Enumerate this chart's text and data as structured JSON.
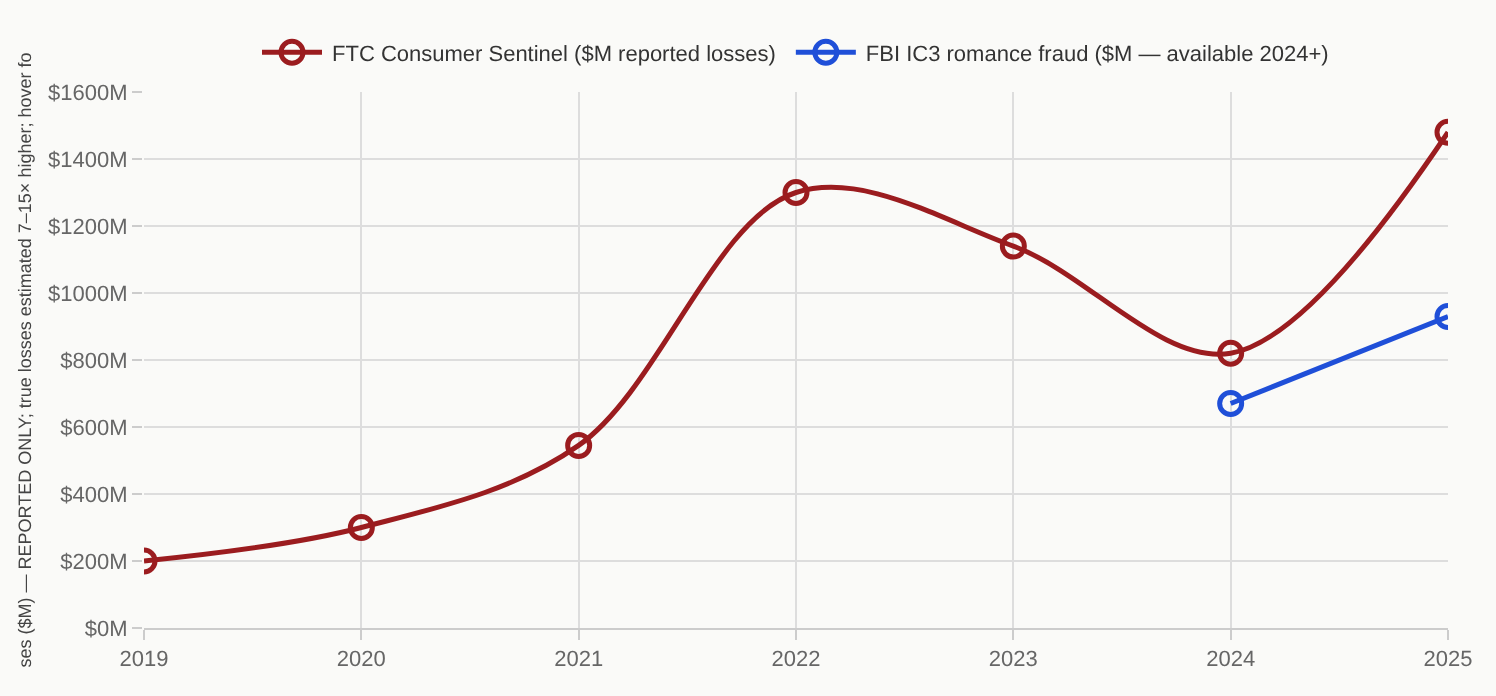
{
  "chart_data": {
    "type": "line",
    "ylabel": "ses ($M) — REPORTED ONLY; true losses estimated 7–15× higher; hover fo",
    "x": [
      2019,
      2020,
      2021,
      2022,
      2023,
      2024,
      2025
    ],
    "series": [
      {
        "name": "FTC Consumer Sentinel ($M reported losses)",
        "color": "#9b1c1f",
        "values": [
          200,
          300,
          545,
          1300,
          1140,
          820,
          1480
        ]
      },
      {
        "name": "FBI IC3 romance fraud ($M — available 2024+)",
        "color": "#1f4fd8",
        "values": [
          null,
          null,
          null,
          null,
          null,
          670,
          930
        ]
      }
    ],
    "xlim": [
      2019,
      2025
    ],
    "xticks": [
      2019,
      2020,
      2021,
      2022,
      2023,
      2024,
      2025
    ],
    "ylim": [
      0,
      1600
    ],
    "yticks": [
      {
        "value": 0,
        "label": "$0M"
      },
      {
        "value": 200,
        "label": "$200M"
      },
      {
        "value": 400,
        "label": "$400M"
      },
      {
        "value": 600,
        "label": "$600M"
      },
      {
        "value": 800,
        "label": "$800M"
      },
      {
        "value": 1000,
        "label": "$1000M"
      },
      {
        "value": 1200,
        "label": "$1200M"
      },
      {
        "value": 1400,
        "label": "$1400M"
      },
      {
        "value": 1600,
        "label": "$1600M"
      }
    ],
    "grid": true,
    "legend": "top",
    "marker": "circle",
    "line_style": "solid"
  }
}
